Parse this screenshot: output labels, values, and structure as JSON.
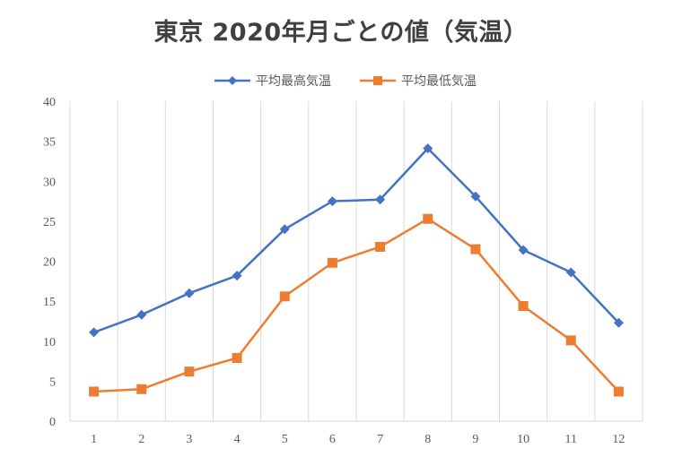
{
  "colors": {
    "max": "#4472c4",
    "min": "#ed7d31",
    "grid": "#d9d9d9",
    "axis_text": "#595959"
  },
  "chart_data": {
    "type": "line",
    "title": "東京 2020年月ごとの値（気温）",
    "categories": [
      "1",
      "2",
      "3",
      "4",
      "5",
      "6",
      "7",
      "8",
      "9",
      "10",
      "11",
      "12"
    ],
    "series": [
      {
        "name": "平均最高気温",
        "marker": "diamond",
        "values": [
          11.1,
          13.3,
          16.0,
          18.2,
          24.0,
          27.5,
          27.7,
          34.1,
          28.1,
          21.4,
          18.6,
          12.3
        ]
      },
      {
        "name": "平均最低気温",
        "marker": "square",
        "values": [
          3.7,
          4.0,
          6.2,
          7.9,
          15.6,
          19.8,
          21.8,
          25.3,
          21.5,
          14.4,
          10.1,
          3.7
        ]
      }
    ],
    "ylim": [
      0,
      40
    ],
    "yticks": [
      "0",
      "5",
      "10",
      "15",
      "20",
      "25",
      "30",
      "35",
      "40"
    ],
    "grid": "vertical",
    "legend": "top-center"
  }
}
